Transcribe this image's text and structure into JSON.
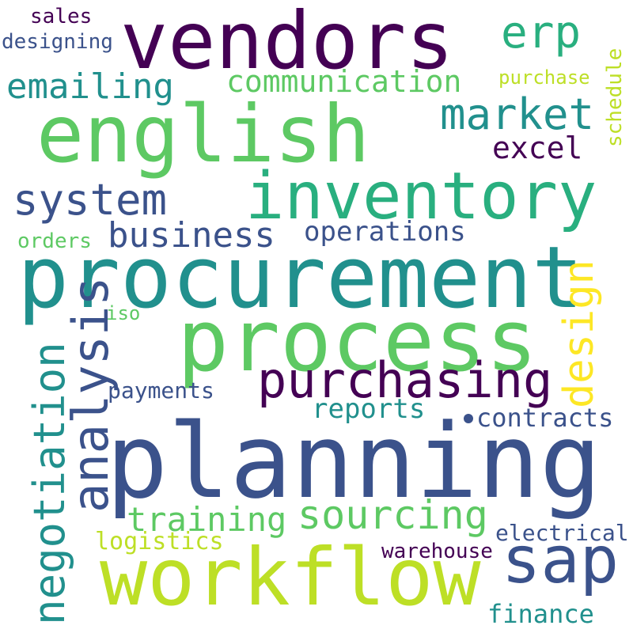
{
  "words": {
    "planning": {
      "text": "planning",
      "color": "#3b528b"
    },
    "procurement": {
      "text": "procurement",
      "color": "#21908d"
    },
    "process": {
      "text": "process",
      "color": "#5dc963"
    },
    "english": {
      "text": "english",
      "color": "#5dc963"
    },
    "vendors": {
      "text": "vendors",
      "color": "#440154"
    },
    "workflow": {
      "text": "workflow",
      "color": "#bddf26"
    },
    "inventory": {
      "text": "inventory",
      "color": "#29af7f"
    },
    "sap": {
      "text": "sap",
      "color": "#3b528b"
    },
    "purchasing": {
      "text": "purchasing",
      "color": "#440154"
    },
    "analysis": {
      "text": "analysis",
      "color": "#3b528b"
    },
    "negotiation": {
      "text": "negotiation",
      "color": "#21908d"
    },
    "design": {
      "text": "design",
      "color": "#fde725"
    },
    "system": {
      "text": "system",
      "color": "#3b528b"
    },
    "market": {
      "text": "market",
      "color": "#21908d"
    },
    "business": {
      "text": "business",
      "color": "#3b528b"
    },
    "sourcing": {
      "text": "sourcing",
      "color": "#5dc963"
    },
    "erp": {
      "text": "erp",
      "color": "#29af7f"
    },
    "emailing": {
      "text": "emailing",
      "color": "#21908d"
    },
    "communication": {
      "text": "communication",
      "color": "#5dc963"
    },
    "training": {
      "text": "training",
      "color": "#5dc963"
    },
    "excel": {
      "text": "excel",
      "color": "#440154"
    },
    "operations": {
      "text": "operations",
      "color": "#3b528b"
    },
    "reports": {
      "text": "reports",
      "color": "#21908d"
    },
    "contracts": {
      "text": "contracts",
      "color": "#3b528b"
    },
    "schedule": {
      "text": "schedule",
      "color": "#bddf26"
    },
    "payments": {
      "text": "payments",
      "color": "#3b528b"
    },
    "logistics": {
      "text": "logistics",
      "color": "#bddf26"
    },
    "finance": {
      "text": "finance",
      "color": "#21908d"
    },
    "electrical": {
      "text": "electrical",
      "color": "#3b528b"
    },
    "warehouse": {
      "text": "warehouse",
      "color": "#440154"
    },
    "purchase": {
      "text": "purchase",
      "color": "#bddf26"
    },
    "orders": {
      "text": "orders",
      "color": "#5dc963"
    },
    "iso": {
      "text": "iso",
      "color": "#5dc963"
    },
    "designing": {
      "text": "designing",
      "color": "#3b528b"
    },
    "sales": {
      "text": "sales",
      "color": "#440154"
    }
  },
  "accent_dot_color": "#3b528b"
}
